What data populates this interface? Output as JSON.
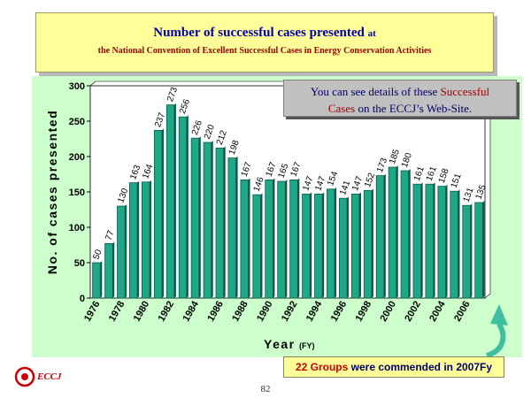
{
  "header": {
    "title_main": "Number of successful cases presented",
    "title_at": "at",
    "title_sub": "the National Convention of Excellent Successful Cases in Energy Conservation Activities"
  },
  "note": {
    "text_1": "You can see details of these ",
    "highlight_1": "Successful",
    "highlight_2": "Cases",
    "text_2": " on the ECCJ’s Web-Site."
  },
  "footer": {
    "highlight": "22 Groups",
    "text": " were commended in 2007Fy"
  },
  "logo": {
    "text": "ECCJ"
  },
  "page_number": "82",
  "colors": {
    "bar": "#1fa888",
    "bar_dark": "#0a5a48",
    "panel": "#ccffcc",
    "arrow": "#3fbf9f"
  },
  "chart_data": {
    "type": "bar",
    "title": "",
    "ylabel": "No. of cases presented",
    "xlabel": "Year",
    "xlabel_unit": "(FY)",
    "ylim": [
      0,
      300
    ],
    "yticks": [
      0,
      50,
      100,
      150,
      200,
      250,
      300
    ],
    "xtick_labels": [
      "1976",
      "1978",
      "1980",
      "1982",
      "1984",
      "1986",
      "1988",
      "1990",
      "1992",
      "1994",
      "1996",
      "1998",
      "2000",
      "2002",
      "2004",
      "2006"
    ],
    "categories": [
      "1976",
      "1977",
      "1978",
      "1979",
      "1980",
      "1981",
      "1982",
      "1983",
      "1984",
      "1985",
      "1986",
      "1987",
      "1988",
      "1989",
      "1990",
      "1991",
      "1992",
      "1993",
      "1994",
      "1995",
      "1996",
      "1997",
      "1998",
      "1999",
      "2000",
      "2001",
      "2002",
      "2003",
      "2004",
      "2005",
      "2006",
      "2007"
    ],
    "values": [
      50,
      77,
      130,
      163,
      164,
      237,
      273,
      256,
      226,
      220,
      212,
      198,
      167,
      146,
      167,
      165,
      167,
      147,
      147,
      154,
      141,
      147,
      152,
      173,
      185,
      180,
      161,
      161,
      158,
      151,
      131,
      135
    ],
    "grid": false,
    "legend": "none"
  }
}
